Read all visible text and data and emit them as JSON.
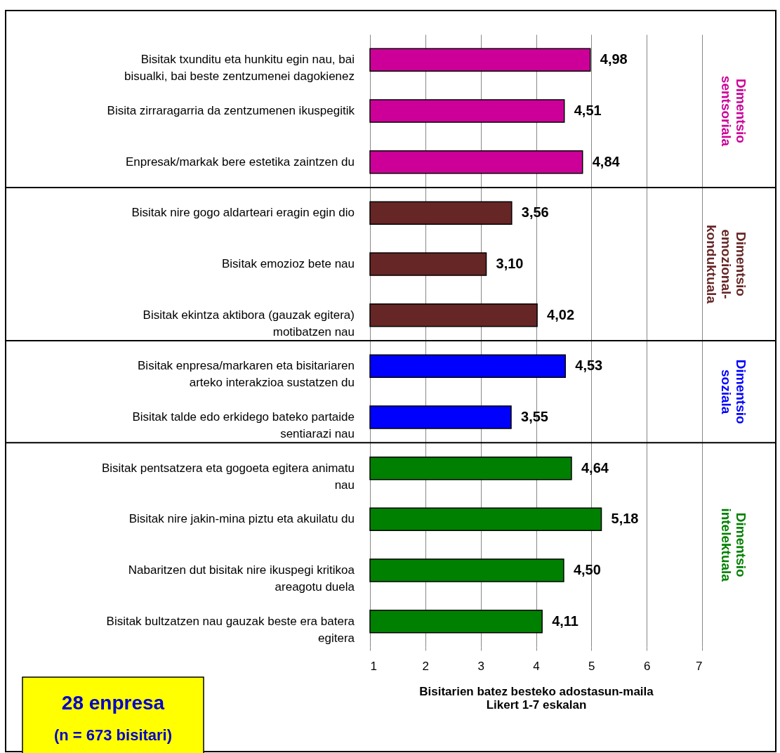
{
  "chart_data": {
    "type": "bar",
    "orientation": "horizontal",
    "categories": [
      "Bisitak txunditu eta hunkitu egin nau, bai bisualki, bai beste zentzumenei dagokienez",
      "Bisita zirraragarria da zentzumenen ikuspegitik",
      "Enpresak/markak bere estetika zaintzen du",
      "Bisitak nire gogo aldarteari eragin egin dio",
      "Bisitak emozioz bete nau",
      "Bisitak ekintza aktibora (gauzak egitera) motibatzen nau",
      "Bisitak enpresa/markaren eta bisitariaren arteko interakzioa sustatzen du",
      "Bisitak talde edo erkidego bateko partaide sentiarazi nau",
      "Bisitak pentsatzera eta gogoeta egitera animatu nau",
      "Bisitak nire jakin-mina piztu eta akuilatu du",
      "Nabaritzen dut bisitak nire ikuspegi kritikoa areagotu duela",
      "Bisitak bultzatzen nau gauzak beste era batera egitera"
    ],
    "series": [
      {
        "name": "Dimentsio sentsoriala",
        "color": "#cc0099",
        "values": [
          4.98,
          4.51,
          4.84,
          null,
          null,
          null,
          null,
          null,
          null,
          null,
          null,
          null
        ],
        "value_labels": [
          "4,98",
          "4,51",
          "4,84",
          null,
          null,
          null,
          null,
          null,
          null,
          null,
          null,
          null
        ]
      },
      {
        "name": "Dimentsio emozional-konduktuala",
        "color": "#662626",
        "values": [
          null,
          null,
          null,
          3.56,
          3.1,
          4.02,
          null,
          null,
          null,
          null,
          null,
          null
        ],
        "value_labels": [
          null,
          null,
          null,
          "3,56",
          "3,10",
          "4,02",
          null,
          null,
          null,
          null,
          null,
          null
        ]
      },
      {
        "name": "Dimentsio soziala",
        "color": "#0000ff",
        "values": [
          null,
          null,
          null,
          null,
          null,
          null,
          4.53,
          3.55,
          null,
          null,
          null,
          null
        ],
        "value_labels": [
          null,
          null,
          null,
          null,
          null,
          null,
          "4,53",
          "3,55",
          null,
          null,
          null,
          null
        ]
      },
      {
        "name": "Dimentsio intelektuala",
        "color": "#008000",
        "values": [
          null,
          null,
          null,
          null,
          null,
          null,
          null,
          null,
          4.64,
          5.18,
          4.5,
          4.11
        ],
        "value_labels": [
          null,
          null,
          null,
          null,
          null,
          null,
          null,
          null,
          "4,64",
          "5,18",
          "4,50",
          "4,11"
        ]
      }
    ],
    "xlim": [
      1,
      7
    ],
    "xticks": [
      1,
      2,
      3,
      4,
      5,
      6,
      7
    ],
    "grid": "x",
    "legend": false,
    "xlabel": "Bisitarien batez besteko adostasun-maila\nLikert 1-7 eskalan",
    "annotations": [
      "28 enpresa",
      "(n = 673 bisitari)"
    ]
  }
}
